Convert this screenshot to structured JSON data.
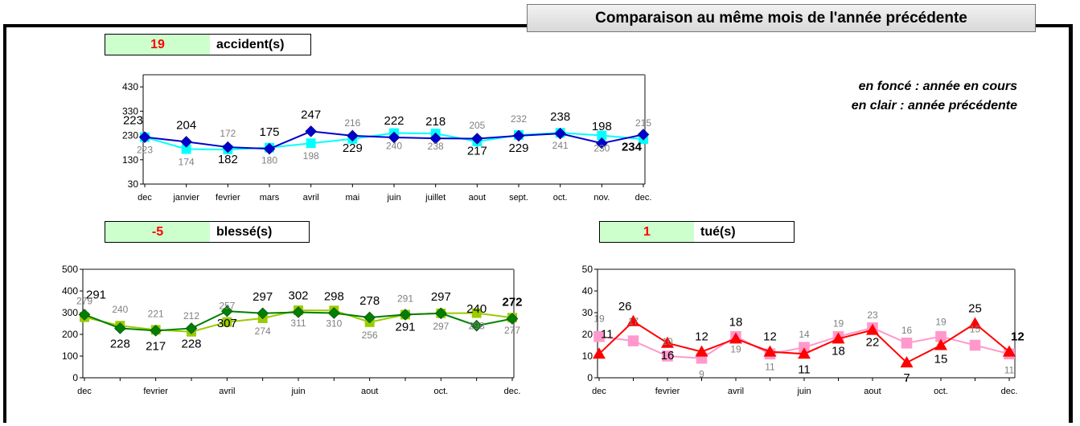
{
  "header": {
    "banner": "Comparaison au même mois de l'année précédente",
    "legend_current": "en foncé : année en cours",
    "legend_previous": "en clair : année précédente"
  },
  "stats": {
    "accidents": {
      "value": "19",
      "label": "accident(s)"
    },
    "blesses": {
      "value": "-5",
      "label": "blessé(s)"
    },
    "tues": {
      "value": "1",
      "label": "tué(s)"
    }
  },
  "chart_data": [
    {
      "id": "accidents",
      "type": "line",
      "categories": [
        "dec",
        "janvier",
        "fevrier",
        "mars",
        "avril",
        "mai",
        "juin",
        "juillet",
        "aout",
        "sept.",
        "oct.",
        "nov.",
        "dec."
      ],
      "yticks": [
        30,
        130,
        230,
        330,
        430
      ],
      "ylim": [
        30,
        480
      ],
      "grid": false,
      "series": [
        {
          "role": "current",
          "marker": "diamond",
          "color": "#0000cc",
          "values": [
            223,
            204,
            182,
            175,
            247,
            229,
            222,
            218,
            217,
            229,
            238,
            198,
            234
          ]
        },
        {
          "role": "previous",
          "marker": "square",
          "color": "#00ffff",
          "values": [
            223,
            174,
            172,
            180,
            198,
            216,
            240,
            238,
            205,
            232,
            241,
            230,
            215
          ]
        }
      ]
    },
    {
      "id": "blesses",
      "type": "line",
      "categories": [
        "dec",
        "",
        "fevrier",
        "",
        "avril",
        "",
        "juin",
        "",
        "aout",
        "",
        "oct.",
        "",
        "dec."
      ],
      "yticks": [
        0,
        100,
        200,
        300,
        400,
        500
      ],
      "ylim": [
        0,
        500
      ],
      "grid": false,
      "series": [
        {
          "role": "current",
          "marker": "diamond",
          "color": "#008000",
          "values": [
            291,
            228,
            217,
            228,
            307,
            297,
            302,
            298,
            278,
            291,
            297,
            240,
            272
          ]
        },
        {
          "role": "previous",
          "marker": "square",
          "color": "#99cc00",
          "values": [
            279,
            240,
            221,
            212,
            257,
            274,
            311,
            310,
            256,
            291,
            297,
            298,
            277
          ]
        }
      ]
    },
    {
      "id": "tues",
      "type": "line",
      "categories": [
        "dec",
        "",
        "fevrier",
        "",
        "avril",
        "",
        "juin",
        "",
        "aout",
        "",
        "oct.",
        "",
        "dec."
      ],
      "yticks": [
        0,
        10,
        20,
        30,
        40,
        50
      ],
      "ylim": [
        0,
        50
      ],
      "grid": false,
      "series": [
        {
          "role": "current",
          "marker": "triangle",
          "color": "#ff0000",
          "values": [
            11,
            26,
            16,
            12,
            18,
            12,
            11,
            18,
            22,
            7,
            15,
            25,
            12
          ]
        },
        {
          "role": "previous",
          "marker": "square",
          "color": "#ff99cc",
          "values": [
            19,
            17,
            10,
            9,
            19,
            11,
            14,
            19,
            23,
            16,
            19,
            15,
            11
          ]
        }
      ]
    }
  ]
}
